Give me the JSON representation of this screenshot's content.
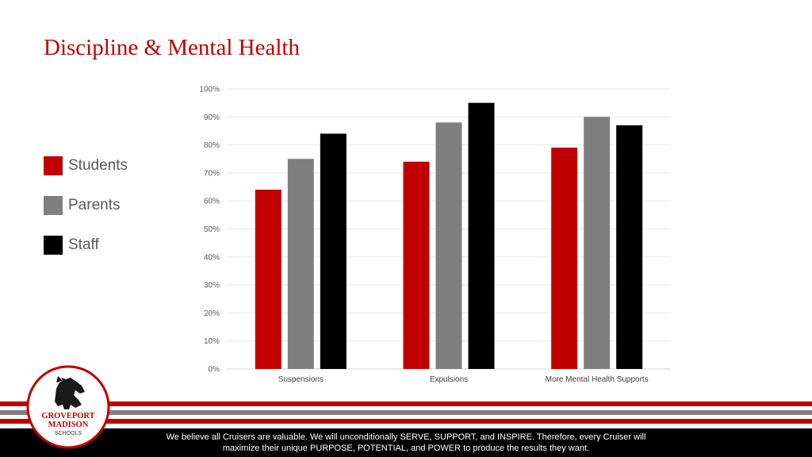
{
  "slide": {
    "title": "Discipline & Mental Health"
  },
  "colors": {
    "title": "#c00000",
    "students": "#c00000",
    "parents": "#7f7f7f",
    "staff": "#000000",
    "footer_dark": "#000000",
    "stripe_red": "#c00000",
    "stripe_gray": "#7f7f7f"
  },
  "legend": {
    "items": [
      {
        "label": "Students",
        "color": "#c00000"
      },
      {
        "label": "Parents",
        "color": "#7f7f7f"
      },
      {
        "label": "Staff",
        "color": "#000000"
      }
    ]
  },
  "chart_data": {
    "type": "bar",
    "categories": [
      "Suspensions",
      "Expulsions",
      "More Mental Health Supports"
    ],
    "series": [
      {
        "name": "Students",
        "values": [
          64,
          74,
          79
        ],
        "color": "#c00000"
      },
      {
        "name": "Parents",
        "values": [
          75,
          88,
          90
        ],
        "color": "#7f7f7f"
      },
      {
        "name": "Staff",
        "values": [
          84,
          95,
          87
        ],
        "color": "#000000"
      }
    ],
    "ylim": [
      0,
      100
    ],
    "y_ticks": [
      "0%",
      "10%",
      "20%",
      "30%",
      "40%",
      "50%",
      "60%",
      "70%",
      "80%",
      "90%",
      "100%"
    ],
    "grid": true,
    "legend_position": "left"
  },
  "logo": {
    "line1": "GROVEPORT",
    "line2": "MADISON",
    "line3": "SCHOOLS",
    "icon": "horse-icon"
  },
  "footer": {
    "line1": "We believe all Cruisers are valuable. We will unconditionally SERVE, SUPPORT, and INSPIRE. Therefore, every Cruiser will",
    "line2": "maximize their unique PURPOSE, POTENTIAL, and POWER to produce the results they want."
  }
}
